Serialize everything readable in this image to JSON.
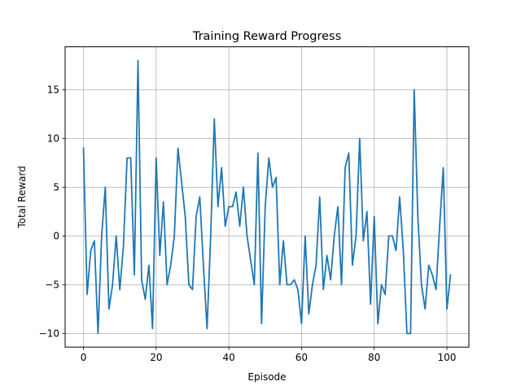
{
  "chart_data": {
    "type": "line",
    "title": "Training Reward Progress",
    "xlabel": "Episode",
    "ylabel": "Total Reward",
    "xlim": [
      -5.05,
      106.05
    ],
    "ylim": [
      -11.4,
      19.4
    ],
    "xticks": [
      0,
      20,
      40,
      60,
      80,
      100
    ],
    "yticks": [
      -10,
      -5,
      0,
      5,
      10,
      15
    ],
    "grid": true,
    "legend": "none",
    "series": [
      {
        "color": "#1f77b4",
        "x": [
          0,
          1,
          2,
          3,
          4,
          5,
          6,
          7,
          8,
          9,
          10,
          11,
          12,
          13,
          14,
          15,
          16,
          17,
          18,
          19,
          20,
          21,
          22,
          23,
          24,
          25,
          26,
          27,
          28,
          29,
          30,
          31,
          32,
          33,
          34,
          35,
          36,
          37,
          38,
          39,
          40,
          41,
          42,
          43,
          44,
          45,
          46,
          47,
          48,
          49,
          50,
          51,
          52,
          53,
          54,
          55,
          56,
          57,
          58,
          59,
          60,
          61,
          62,
          63,
          64,
          65,
          66,
          67,
          68,
          69,
          70,
          71,
          72,
          73,
          74,
          75,
          76,
          77,
          78,
          79,
          80,
          81,
          82,
          83,
          84,
          85,
          86,
          87,
          88,
          89,
          90,
          91,
          92,
          93,
          94,
          95,
          96,
          97,
          98,
          99,
          100,
          101
        ],
        "values": [
          9,
          -6,
          -1.5,
          -0.5,
          -10,
          0,
          5,
          -7.5,
          -5,
          0,
          -5.5,
          -1,
          8,
          8,
          -4,
          18,
          -4.5,
          -6.5,
          -3,
          -9.5,
          8,
          -2,
          3.5,
          -5,
          -3,
          0,
          9,
          5.5,
          2,
          -5,
          -5.5,
          2,
          4,
          -3,
          -9.5,
          0,
          12,
          3,
          7,
          1,
          3,
          3,
          4.5,
          1,
          5,
          0,
          -2.5,
          -5,
          8.5,
          -9,
          3,
          8,
          5,
          6,
          -5,
          -0.5,
          -5,
          -5,
          -4.5,
          -5.5,
          -9,
          0,
          -8,
          -5,
          -3,
          4,
          -5.5,
          -2,
          -4.5,
          0,
          3,
          -5,
          7,
          8.5,
          -3,
          0,
          10,
          -0.5,
          2.5,
          -7,
          2,
          -9,
          -5,
          -6,
          0,
          0,
          -1.5,
          4,
          -1.5,
          -10,
          -10,
          15,
          2,
          -5,
          -7.5,
          -3,
          -4,
          -5.5,
          1,
          7,
          -7.5,
          -4
        ]
      }
    ]
  }
}
